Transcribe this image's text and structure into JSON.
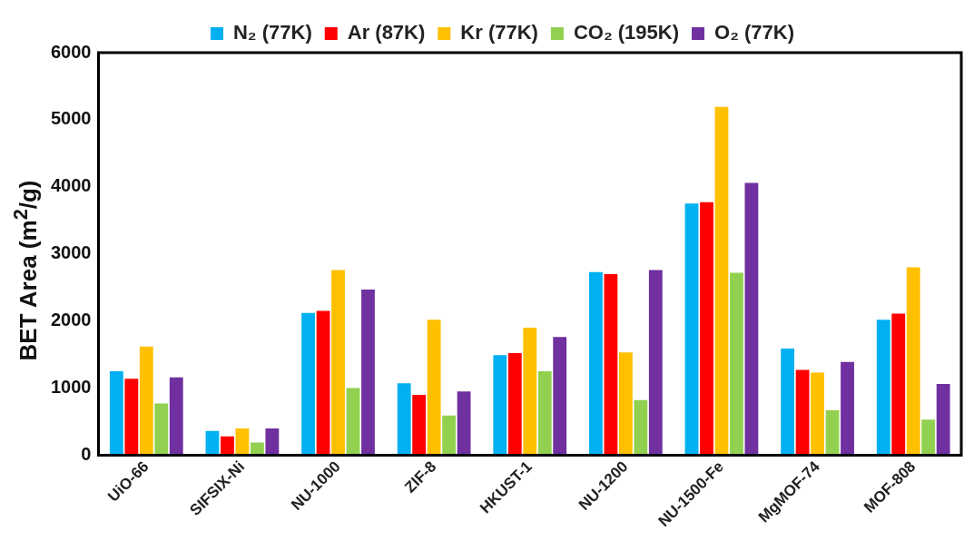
{
  "chart_data": {
    "type": "bar",
    "ylabel": "BET Area (m$^{2}$/g)",
    "categories": [
      "UiO-66",
      "SIFSIX-Ni",
      "NU-1000",
      "ZIF-8",
      "HKUST-1",
      "NU-1200",
      "NU-1500-Fe",
      "MgMOF-74",
      "MOF-808"
    ],
    "series": [
      {
        "name": "N₂ (77K)",
        "color": "#00b0f0",
        "values": [
          1250,
          360,
          2120,
          1070,
          1490,
          2730,
          3750,
          1590,
          2020
        ]
      },
      {
        "name": "Ar (87K)",
        "color": "#ff0000",
        "values": [
          1140,
          280,
          2150,
          900,
          1520,
          2700,
          3770,
          1270,
          2110
        ]
      },
      {
        "name": "Kr (77K)",
        "color": "#ffc000",
        "values": [
          1620,
          400,
          2760,
          2020,
          1900,
          1530,
          5190,
          1230,
          2800
        ]
      },
      {
        "name": "CO₂ (195K)",
        "color": "#92d050",
        "values": [
          770,
          190,
          1000,
          590,
          1250,
          820,
          2720,
          670,
          530
        ]
      },
      {
        "name": "O₂ (77K)",
        "color": "#7030a0",
        "values": [
          1160,
          400,
          2470,
          950,
          1760,
          2760,
          4060,
          1390,
          1060
        ]
      }
    ],
    "ylim": [
      0,
      6000
    ],
    "yticks": [
      0,
      1000,
      2000,
      3000,
      4000,
      5000,
      6000
    ],
    "grid": false,
    "legend": "top"
  }
}
